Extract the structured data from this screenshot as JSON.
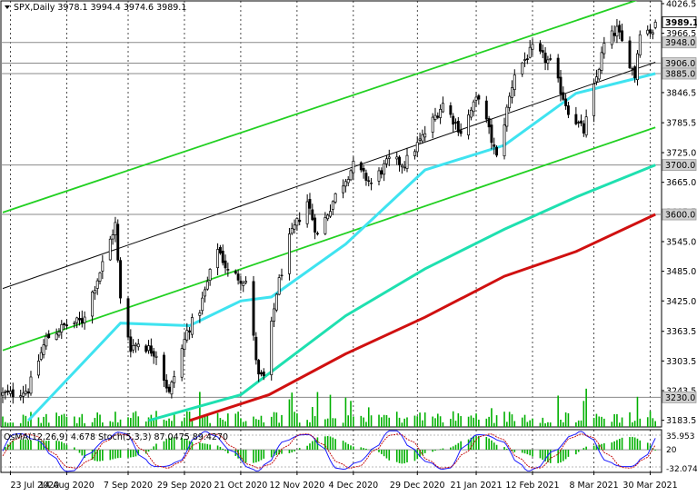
{
  "chart_data": {
    "type": "candlestick",
    "title": "SPX,Daily",
    "ohlc": "3978.1 3994.4 3974.6 3989.1",
    "ylim": [
      3170,
      4032
    ],
    "y_ticks": [
      4026.5,
      3966.5,
      3906.0,
      3846.5,
      3785.5,
      3725.0,
      3665.0,
      3605.5,
      3545.0,
      3485.0,
      3425.0,
      3363.5,
      3303.5,
      3243.5,
      3183.5
    ],
    "y_tick_labels": [
      "4026.5",
      "3966.5",
      "3906.0",
      "3846.5",
      "3785.5",
      "3725.0",
      "3665.0",
      "3605.5",
      "3545.0",
      "3485.0",
      "3425.0",
      "3363.5",
      "3303.5",
      "3243.5",
      "3183.5"
    ],
    "price_labels": [
      {
        "text": "3989.1",
        "value": 3989.1,
        "style": "current"
      },
      {
        "text": "3948.0",
        "value": 3948.0,
        "style": "level"
      },
      {
        "text": "3906.0",
        "value": 3906.0,
        "style": "level"
      },
      {
        "text": "3885.0",
        "value": 3885.0,
        "style": "level"
      },
      {
        "text": "3700.0",
        "value": 3700.0,
        "style": "level"
      },
      {
        "text": "3600.0",
        "value": 3600.0,
        "style": "level"
      },
      {
        "text": "3230.0",
        "value": 3230.0,
        "style": "level"
      }
    ],
    "x_labels": [
      "23 Jul 2020",
      "14 Aug 2020",
      "7 Sep 2020",
      "29 Sep 2020",
      "21 Oct 2020",
      "12 Nov 2020",
      "4 Dec 2020",
      "29 Dec 2020",
      "21 Jan 2021",
      "12 Feb 2021",
      "8 Mar 2021",
      "30 Mar 2021"
    ],
    "x_label_dates": [
      "2020-07-23",
      "2020-08-14",
      "2020-09-07",
      "2020-09-29",
      "2020-10-21",
      "2020-11-12",
      "2020-12-04",
      "2020-12-29",
      "2021-01-21",
      "2021-02-12",
      "2021-03-08",
      "2021-03-30"
    ],
    "close_path": [
      [
        "2020-07-23",
        3236
      ],
      [
        "2020-07-30",
        3246
      ],
      [
        "2020-08-06",
        3349
      ],
      [
        "2020-08-13",
        3374
      ],
      [
        "2020-08-20",
        3385
      ],
      [
        "2020-08-27",
        3484
      ],
      [
        "2020-09-02",
        3580
      ],
      [
        "2020-09-04",
        3427
      ],
      [
        "2020-09-08",
        3331
      ],
      [
        "2020-09-11",
        3341
      ],
      [
        "2020-09-18",
        3319
      ],
      [
        "2020-09-23",
        3237
      ],
      [
        "2020-09-30",
        3363
      ],
      [
        "2020-10-05",
        3408
      ],
      [
        "2020-10-12",
        3534
      ],
      [
        "2020-10-16",
        3483
      ],
      [
        "2020-10-23",
        3465
      ],
      [
        "2020-10-28",
        3271
      ],
      [
        "2020-10-30",
        3270
      ],
      [
        "2020-11-04",
        3443
      ],
      [
        "2020-11-09",
        3550
      ],
      [
        "2020-11-16",
        3627
      ],
      [
        "2020-11-20",
        3557
      ],
      [
        "2020-11-27",
        3638
      ],
      [
        "2020-12-04",
        3699
      ],
      [
        "2020-12-11",
        3663
      ],
      [
        "2020-12-18",
        3709
      ],
      [
        "2020-12-24",
        3703
      ],
      [
        "2020-12-31",
        3756
      ],
      [
        "2021-01-08",
        3824
      ],
      [
        "2021-01-15",
        3768
      ],
      [
        "2021-01-22",
        3841
      ],
      [
        "2021-01-29",
        3714
      ],
      [
        "2021-02-05",
        3886
      ],
      [
        "2021-02-12",
        3934
      ],
      [
        "2021-02-19",
        3906
      ],
      [
        "2021-02-26",
        3811
      ],
      [
        "2021-03-04",
        3768
      ],
      [
        "2021-03-12",
        3943
      ],
      [
        "2021-03-17",
        3974
      ],
      [
        "2021-03-24",
        3881
      ],
      [
        "2021-03-26",
        3974
      ],
      [
        "2021-03-31",
        3972
      ],
      [
        "2021-04-01",
        3989
      ]
    ],
    "channels": [
      {
        "color": "#22d022",
        "points": [
          [
            "2020-07-20",
            3604
          ],
          [
            "2021-04-01",
            4046
          ]
        ]
      },
      {
        "color": "#22d022",
        "points": [
          [
            "2020-07-20",
            3325
          ],
          [
            "2021-04-01",
            3776
          ]
        ]
      },
      {
        "color": "#0a0a0a",
        "points": [
          [
            "2020-07-20",
            3450
          ],
          [
            "2021-04-01",
            3908
          ]
        ]
      }
    ],
    "moving_averages": [
      {
        "color": "#3fe3f0",
        "points": [
          [
            "2020-07-30",
            3183
          ],
          [
            "2020-09-04",
            3380
          ],
          [
            "2020-10-01",
            3375
          ],
          [
            "2020-10-21",
            3425
          ],
          [
            "2020-11-02",
            3433
          ],
          [
            "2020-12-01",
            3540
          ],
          [
            "2021-01-01",
            3690
          ],
          [
            "2021-02-01",
            3740
          ],
          [
            "2021-03-01",
            3845
          ],
          [
            "2021-04-01",
            3885
          ]
        ]
      },
      {
        "color": "#1fe0b0",
        "points": [
          [
            "2020-09-15",
            3183
          ],
          [
            "2020-10-21",
            3235
          ],
          [
            "2020-12-01",
            3395
          ],
          [
            "2021-01-01",
            3490
          ],
          [
            "2021-02-01",
            3570
          ],
          [
            "2021-03-01",
            3635
          ],
          [
            "2021-04-01",
            3700
          ]
        ]
      },
      {
        "color": "#d01010",
        "points": [
          [
            "2020-10-01",
            3183
          ],
          [
            "2020-11-01",
            3235
          ],
          [
            "2020-12-01",
            3318
          ],
          [
            "2021-01-01",
            3392
          ],
          [
            "2021-02-01",
            3475
          ],
          [
            "2021-03-01",
            3525
          ],
          [
            "2021-04-01",
            3600
          ]
        ]
      }
    ],
    "oscillator_label": "OsMA(12,26,9) 4.678  Stoch(5,3,3) 87.0475 89.4270",
    "oscillator_axis": [
      {
        "text": "35.953"
      },
      {
        "text": "20"
      },
      {
        "text": "-32.074"
      }
    ],
    "colors": {
      "bg": "#ffffff",
      "grid": "#000000",
      "candle": "#000000",
      "volume": "#00b000",
      "osma": "#00b000",
      "stoch_main": "#1a1aff",
      "stoch_signal": "#c00000",
      "label_box": "#cfcfcf",
      "current_box": "#ffffff"
    },
    "grid": true
  }
}
